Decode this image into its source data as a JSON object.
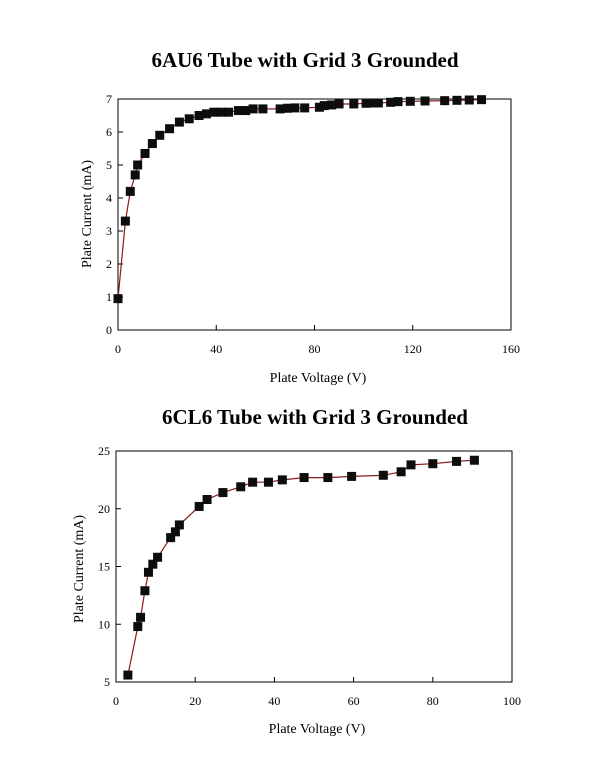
{
  "chart_data": [
    {
      "type": "scatter",
      "title": "6AU6 Tube with Grid 3 Grounded",
      "xlabel": "Plate Voltage (V)",
      "ylabel": "Plate Current (mA)",
      "xlim": [
        0,
        160
      ],
      "ylim": [
        0,
        7
      ],
      "xticks": [
        0,
        40,
        80,
        120,
        160
      ],
      "yticks": [
        0,
        1,
        2,
        3,
        4,
        5,
        6,
        7
      ],
      "grid": false,
      "line_color": "#8b1a1a",
      "marker_color": "#0d0d0d",
      "series": [
        {
          "name": "6AU6",
          "x": [
            0,
            3,
            5,
            7,
            8,
            11,
            14,
            17,
            21,
            25,
            29,
            33,
            36,
            39,
            42,
            45,
            49,
            52,
            55,
            59,
            66,
            69,
            72,
            76,
            82,
            84,
            87,
            90,
            96,
            101,
            104,
            106,
            111,
            114,
            119,
            125,
            133,
            138,
            143,
            148
          ],
          "y": [
            0.95,
            3.3,
            4.2,
            4.7,
            5.0,
            5.35,
            5.65,
            5.9,
            6.1,
            6.3,
            6.4,
            6.5,
            6.55,
            6.6,
            6.6,
            6.6,
            6.65,
            6.65,
            6.7,
            6.7,
            6.7,
            6.72,
            6.73,
            6.73,
            6.75,
            6.8,
            6.82,
            6.85,
            6.85,
            6.87,
            6.88,
            6.88,
            6.9,
            6.92,
            6.93,
            6.94,
            6.95,
            6.96,
            6.97,
            6.98
          ]
        }
      ]
    },
    {
      "type": "scatter",
      "title": "6CL6 Tube with Grid 3 Grounded",
      "xlabel": "Plate Voltage (V)",
      "ylabel": "Plate Current (mA)",
      "xlim": [
        0,
        100
      ],
      "ylim": [
        5,
        25
      ],
      "xticks": [
        0,
        20,
        40,
        60,
        80,
        100
      ],
      "yticks": [
        5,
        10,
        15,
        20,
        25
      ],
      "grid": false,
      "line_color": "#8b1a1a",
      "marker_color": "#0d0d0d",
      "series": [
        {
          "name": "6CL6",
          "x": [
            3,
            5.5,
            6.2,
            7.3,
            8.2,
            9.3,
            10.5,
            13.8,
            15,
            16,
            21,
            23,
            27,
            31.5,
            34.5,
            38.5,
            42,
            47.5,
            53.5,
            59.5,
            67.5,
            72,
            74.5,
            80,
            86,
            90.5
          ],
          "y": [
            5.6,
            9.8,
            10.6,
            12.9,
            14.5,
            15.2,
            15.8,
            17.5,
            18.0,
            18.6,
            20.2,
            20.8,
            21.4,
            21.9,
            22.3,
            22.3,
            22.5,
            22.7,
            22.7,
            22.8,
            22.9,
            23.2,
            23.8,
            23.9,
            24.1,
            24.2
          ]
        }
      ]
    }
  ]
}
